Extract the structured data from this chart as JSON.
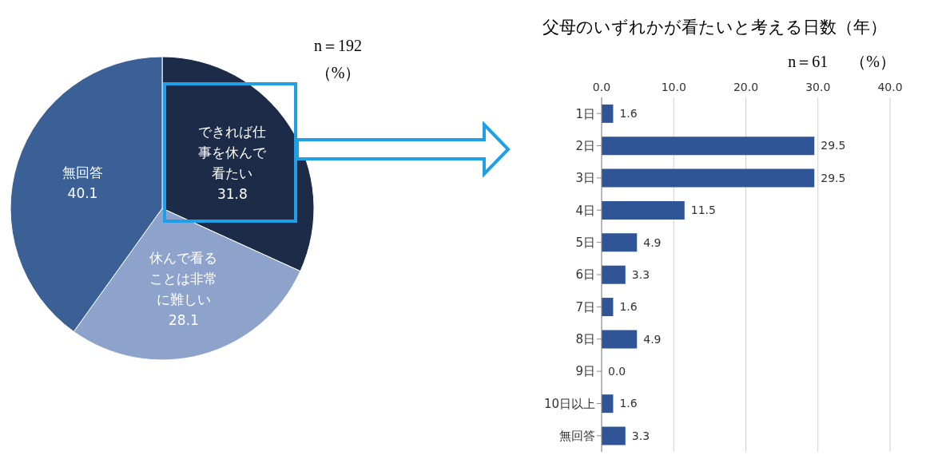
{
  "chart_data": [
    {
      "type": "pie",
      "categories": [
        "できれば仕事を休んで看たい",
        "休んで看ることは非常に難しい",
        "無回答"
      ],
      "values": [
        31.8,
        28.1,
        40.1
      ],
      "colors": [
        "#1c2b48",
        "#8ea3cb",
        "#3b6096"
      ],
      "data_labels": true,
      "annotations": [
        "n＝192",
        "（%）"
      ]
    },
    {
      "type": "bar",
      "orientation": "horizontal",
      "title": "父母のいずれかが看たいと考える日数（年）",
      "annotations": [
        "n＝61",
        "（%）"
      ],
      "categories": [
        "1日",
        "2日",
        "3日",
        "4日",
        "5日",
        "6日",
        "7日",
        "8日",
        "9日",
        "10日以上",
        "無回答"
      ],
      "values": [
        1.6,
        29.5,
        29.5,
        11.5,
        4.9,
        3.3,
        1.6,
        4.9,
        0.0,
        1.6,
        3.3
      ],
      "value_labels": [
        "1.6",
        "29.5",
        "29.5",
        "11.5",
        "4.9",
        "3.3",
        "1.6",
        "4.9",
        "0.0",
        "1.6",
        "3.3"
      ],
      "color": "#2f5597",
      "xlim": [
        0,
        40
      ],
      "xticks": [
        {
          "value": 0,
          "label": "0.0"
        },
        {
          "value": 10,
          "label": "10.0"
        },
        {
          "value": 20,
          "label": "20.0"
        },
        {
          "value": 30,
          "label": "30.0"
        },
        {
          "value": 40,
          "label": "40.0"
        }
      ],
      "grid": "x"
    }
  ]
}
